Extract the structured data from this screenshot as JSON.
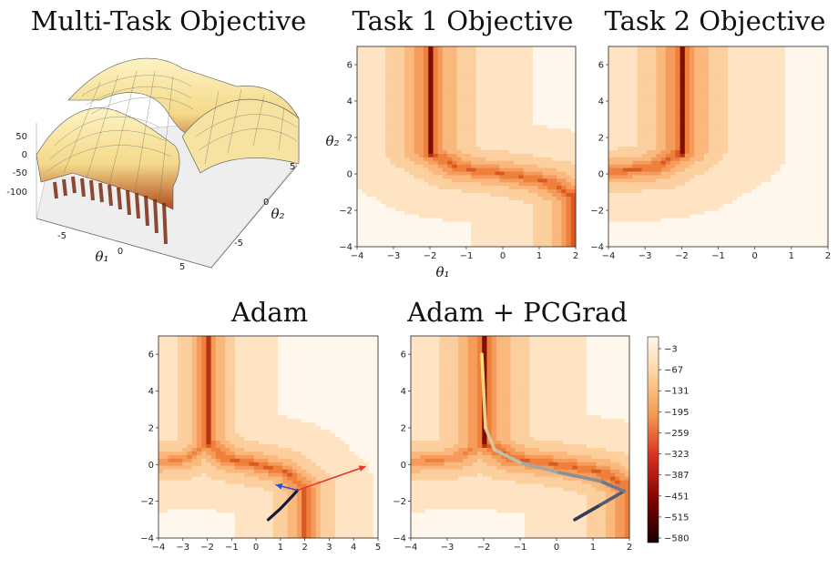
{
  "chart_data": [
    {
      "panel": "multi-task-3d",
      "type": "surface",
      "title": "Multi-Task Objective",
      "xlabel": "θ₁",
      "ylabel": "θ₂",
      "x_ticks": [
        "-5",
        "0",
        "5"
      ],
      "y_ticks": [
        "5",
        "0",
        "-5"
      ],
      "z_ticks": [
        "50",
        "0",
        "-50",
        "-100"
      ],
      "xlim": [
        -7,
        7
      ],
      "ylim": [
        -7,
        7
      ],
      "zlim": [
        -110,
        60
      ]
    },
    {
      "panel": "task1",
      "type": "heatmap",
      "title": "Task 1 Objective",
      "xlabel": "θ₁",
      "ylabel": "θ₂",
      "xlim": [
        -4,
        2
      ],
      "ylim": [
        -4,
        7
      ],
      "x_ticks": [
        "-4",
        "-3",
        "-2",
        "-1",
        "0",
        "1",
        "2"
      ],
      "y_ticks": [
        "-4",
        "-2",
        "0",
        "2",
        "4",
        "6"
      ],
      "valley": [
        [
          -2,
          7
        ],
        [
          -2,
          1
        ],
        [
          0,
          0
        ],
        [
          2,
          -1
        ],
        [
          2,
          -4
        ]
      ]
    },
    {
      "panel": "task2",
      "type": "heatmap",
      "title": "Task 2 Objective",
      "xlabel": "",
      "ylabel": "",
      "xlim": [
        -4,
        2
      ],
      "ylim": [
        -4,
        7
      ],
      "x_ticks": [
        "-4",
        "-3",
        "-2",
        "-1",
        "0",
        "1",
        "2"
      ],
      "y_ticks": [
        "-4",
        "-2",
        "0",
        "2",
        "4",
        "6"
      ],
      "valley": [
        [
          -2,
          7
        ],
        [
          -2,
          1
        ],
        [
          -4,
          0
        ]
      ]
    },
    {
      "panel": "adam",
      "type": "heatmap",
      "title": "Adam",
      "xlim": [
        -4,
        5
      ],
      "ylim": [
        -4,
        7
      ],
      "x_ticks": [
        "-4",
        "-3",
        "-2",
        "-1",
        "0",
        "1",
        "2",
        "3",
        "4",
        "5"
      ],
      "y_ticks": [
        "-4",
        "-2",
        "0",
        "2",
        "4",
        "6"
      ],
      "trajectory": [
        [
          0.5,
          -3
        ],
        [
          1.0,
          -2.4
        ],
        [
          1.5,
          -1.7
        ],
        [
          1.7,
          -1.4
        ]
      ],
      "arrows": [
        {
          "color": "#e8372c",
          "from": [
            1.7,
            -1.4
          ],
          "to": [
            4.5,
            -0.1
          ]
        },
        {
          "color": "#2d4fd6",
          "from": [
            1.7,
            -1.4
          ],
          "to": [
            0.8,
            -1.1
          ]
        }
      ]
    },
    {
      "panel": "adam-pcgrad",
      "type": "heatmap",
      "title": "Adam + PCGrad",
      "xlim": [
        -4,
        2
      ],
      "ylim": [
        -4,
        7
      ],
      "x_ticks": [
        "-4",
        "-3",
        "-2",
        "-1",
        "0",
        "1",
        "2"
      ],
      "y_ticks": [
        "-4",
        "-2",
        "0",
        "2",
        "4",
        "6"
      ],
      "trajectory": [
        [
          0.5,
          -3
        ],
        [
          1.2,
          -2.2
        ],
        [
          1.85,
          -1.45
        ],
        [
          1.2,
          -0.9
        ],
        [
          0.0,
          -0.4
        ],
        [
          -1.0,
          0.1
        ],
        [
          -1.7,
          0.8
        ],
        [
          -1.95,
          2
        ],
        [
          -2.0,
          4
        ],
        [
          -2.05,
          6
        ]
      ]
    },
    {
      "panel": "colorbar",
      "type": "colorbar",
      "ticks": [
        "-3",
        "-67",
        "-131",
        "-195",
        "-259",
        "-323",
        "-387",
        "-451",
        "-515",
        "-580"
      ],
      "range": [
        -580,
        0
      ],
      "colors": [
        "#fff7ec",
        "#fdd49e",
        "#fc8d59",
        "#d7301f",
        "#7f0000",
        "#1a0000"
      ]
    }
  ]
}
